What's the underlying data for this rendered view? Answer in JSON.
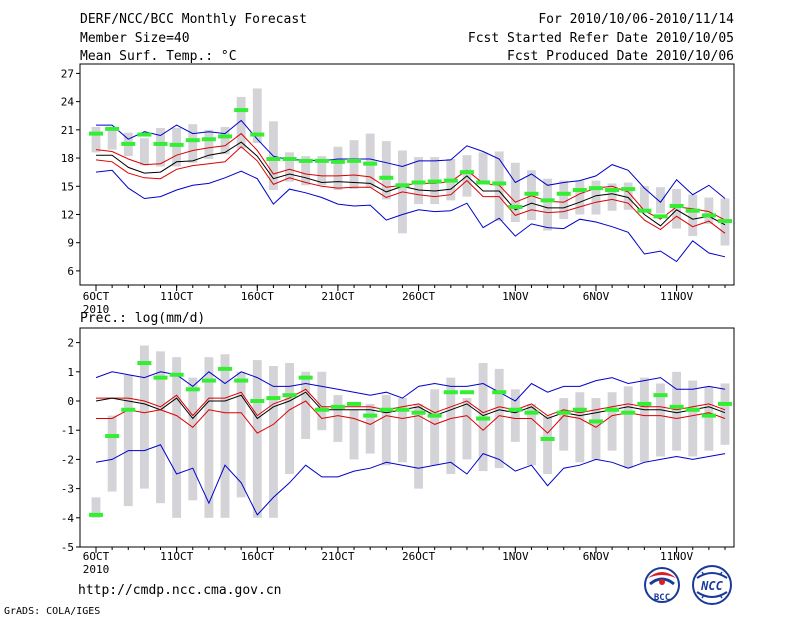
{
  "header": {
    "title": "DERF/NCC/BCC Monthly Forecast",
    "member_size": "Member Size=40",
    "variable": "Mean Surf. Temp.: °C",
    "period": "For 2010/10/06-2010/11/14",
    "fcst_started": "Fcst Started Refer Date 2010/10/05",
    "fcst_produced": "Fcst Produced Date 2010/10/06"
  },
  "footer": {
    "url": "http://cmdp.ncc.cma.gov.cn",
    "credit": "GrADS: COLA/IGES",
    "logo_left_text": "BCC",
    "logo_right_text": "NCC"
  },
  "colors": {
    "box": "#d3d3d8",
    "observed": "#33ee33",
    "mean": "#000000",
    "inner": "#dd0000",
    "outer": "#0000cc",
    "frame": "#000000"
  },
  "chart_data": [
    {
      "type": "line",
      "title": "Mean Surf. Temp.: °C",
      "xlabel": "",
      "ylabel": "",
      "ylim": [
        4.5,
        28
      ],
      "yticks": [
        6,
        9,
        12,
        15,
        18,
        21,
        24,
        27
      ],
      "xtick_labels": [
        "6OCT",
        "11OCT",
        "16OCT",
        "21OCT",
        "26OCT",
        "1NOV",
        "6NOV",
        "11NOV"
      ],
      "xtick_days": [
        1,
        6,
        11,
        16,
        21,
        27,
        32,
        37
      ],
      "year_label": "2010",
      "days": [
        1,
        2,
        3,
        4,
        5,
        6,
        7,
        8,
        9,
        10,
        11,
        12,
        13,
        14,
        15,
        16,
        17,
        18,
        19,
        20,
        21,
        22,
        23,
        24,
        25,
        26,
        27,
        28,
        29,
        30,
        31,
        32,
        33,
        34,
        35,
        36,
        37,
        38,
        39,
        40
      ],
      "box_low": [
        18.6,
        18.9,
        18.2,
        17.2,
        17.1,
        17.1,
        17.5,
        17.9,
        18.4,
        19.0,
        19.6,
        14.6,
        15.5,
        15.1,
        15.1,
        14.6,
        14.7,
        14.8,
        13.6,
        10.0,
        13.1,
        13.1,
        13.5,
        13.9,
        15.2,
        11.3,
        11.2,
        11.4,
        10.3,
        11.5,
        12.0,
        12.0,
        12.4,
        12.5,
        12.5,
        12.1,
        10.5,
        9.7,
        11.0,
        8.7
      ],
      "box_high": [
        21.3,
        21.2,
        20.7,
        20.1,
        21.2,
        21.2,
        21.6,
        21.0,
        21.3,
        24.5,
        25.4,
        21.9,
        18.6,
        18.2,
        18.2,
        19.2,
        19.9,
        20.6,
        19.8,
        18.8,
        18.1,
        18.1,
        17.9,
        18.3,
        18.6,
        18.7,
        17.5,
        16.7,
        15.8,
        15.6,
        15.6,
        15.6,
        15.3,
        15.4,
        15.0,
        14.9,
        14.7,
        14.1,
        13.8,
        13.7
      ],
      "observed": [
        20.6,
        21.1,
        19.5,
        20.5,
        19.5,
        19.4,
        19.9,
        20.0,
        20.3,
        23.1,
        20.5,
        17.9,
        17.9,
        17.7,
        17.7,
        17.6,
        17.7,
        17.4,
        15.9,
        15.1,
        15.4,
        15.5,
        15.6,
        16.5,
        15.4,
        15.3,
        12.8,
        14.2,
        13.5,
        14.2,
        14.6,
        14.8,
        14.6,
        14.7,
        12.4,
        11.8,
        12.9,
        12.4,
        11.9,
        11.3
      ],
      "series": [
        {
          "name": "upper_outer",
          "values": [
            21.5,
            21.5,
            20.0,
            20.8,
            20.4,
            21.5,
            20.6,
            20.8,
            20.6,
            22.0,
            20.0,
            18.2,
            17.8,
            17.8,
            17.7,
            17.9,
            17.9,
            17.9,
            17.5,
            17.1,
            17.7,
            17.7,
            17.8,
            19.3,
            18.7,
            17.9,
            15.4,
            16.3,
            15.1,
            15.4,
            15.6,
            16.1,
            17.3,
            16.7,
            14.8,
            13.3,
            15.7,
            14.1,
            15.1,
            13.7
          ]
        },
        {
          "name": "upper_inner",
          "values": [
            18.9,
            18.7,
            17.9,
            17.3,
            17.4,
            18.3,
            18.8,
            19.1,
            19.3,
            20.6,
            18.8,
            16.3,
            16.8,
            16.3,
            16.1,
            16.1,
            16.2,
            16.0,
            14.9,
            15.1,
            15.3,
            15.3,
            15.5,
            16.7,
            15.3,
            15.1,
            13.3,
            14.0,
            13.4,
            13.3,
            14.2,
            14.8,
            15.0,
            14.4,
            12.4,
            11.5,
            12.8,
            12.6,
            12.3,
            11.4
          ]
        },
        {
          "name": "mean",
          "values": [
            18.3,
            18.3,
            17.0,
            16.4,
            16.5,
            17.6,
            17.7,
            18.3,
            18.6,
            19.7,
            18.2,
            15.8,
            16.3,
            15.9,
            15.4,
            15.5,
            15.4,
            15.3,
            14.4,
            15.0,
            14.6,
            14.5,
            14.7,
            16.1,
            14.5,
            14.5,
            12.5,
            13.2,
            12.7,
            12.7,
            13.3,
            14.0,
            14.2,
            13.8,
            12.0,
            10.8,
            12.5,
            11.5,
            11.8,
            10.9
          ]
        },
        {
          "name": "lower_inner",
          "values": [
            17.8,
            17.6,
            16.4,
            15.9,
            15.8,
            16.8,
            17.2,
            17.4,
            17.6,
            19.2,
            17.7,
            15.2,
            15.9,
            15.4,
            15.0,
            14.8,
            14.9,
            14.9,
            13.8,
            14.4,
            14.1,
            13.9,
            14.1,
            15.6,
            13.9,
            13.9,
            11.9,
            12.5,
            12.2,
            12.3,
            12.8,
            13.3,
            13.6,
            13.2,
            11.4,
            10.4,
            11.8,
            10.7,
            11.3,
            10.0
          ]
        },
        {
          "name": "lower_outer",
          "values": [
            16.5,
            16.7,
            14.8,
            13.7,
            13.9,
            14.6,
            15.1,
            15.3,
            15.9,
            16.6,
            15.8,
            13.1,
            14.7,
            14.3,
            13.8,
            13.1,
            12.9,
            13.0,
            11.4,
            12.0,
            12.5,
            12.3,
            12.4,
            13.2,
            10.6,
            11.6,
            9.7,
            11.0,
            10.6,
            10.5,
            11.5,
            11.2,
            10.7,
            10.1,
            7.8,
            8.1,
            7.0,
            9.2,
            7.9,
            7.5
          ]
        }
      ]
    },
    {
      "type": "line",
      "title": "Prec.: log(mm/d)",
      "xlabel": "",
      "ylabel": "",
      "ylim": [
        -5,
        2.5
      ],
      "yticks": [
        -5,
        -4,
        -3,
        -2,
        -1,
        0,
        1,
        2
      ],
      "xtick_labels": [
        "6OCT",
        "11OCT",
        "16OCT",
        "21OCT",
        "26OCT",
        "1NOV",
        "6NOV",
        "11NOV"
      ],
      "xtick_days": [
        1,
        6,
        11,
        16,
        21,
        27,
        32,
        37
      ],
      "year_label": "2010",
      "days": [
        1,
        2,
        3,
        4,
        5,
        6,
        7,
        8,
        9,
        10,
        11,
        12,
        13,
        14,
        15,
        16,
        17,
        18,
        19,
        20,
        21,
        22,
        23,
        24,
        25,
        26,
        27,
        28,
        29,
        30,
        31,
        32,
        33,
        34,
        35,
        36,
        37,
        38,
        39,
        40
      ],
      "box_low": [
        -4.0,
        -3.1,
        -3.6,
        -3.0,
        -3.5,
        -4.0,
        -3.4,
        -4.0,
        -4.0,
        -3.3,
        -4.0,
        -4.0,
        -2.5,
        -1.3,
        -1.0,
        -1.4,
        -2.0,
        -1.8,
        -2.2,
        -2.1,
        -3.0,
        -2.2,
        -2.5,
        -2.0,
        -2.4,
        -2.3,
        -1.4,
        -2.2,
        -2.5,
        -1.7,
        -2.1,
        -2.0,
        -1.7,
        -2.3,
        -2.1,
        -1.9,
        -1.7,
        -1.9,
        -1.7,
        -1.5
      ],
      "box_high": [
        -3.3,
        -0.5,
        0.9,
        1.9,
        1.7,
        1.5,
        0.8,
        1.5,
        1.6,
        1.0,
        1.4,
        1.2,
        1.3,
        1.0,
        1.0,
        0.2,
        -0.3,
        -0.1,
        0.2,
        0.1,
        -0.1,
        0.4,
        0.8,
        0.1,
        1.3,
        1.1,
        0.4,
        -0.1,
        -0.5,
        0.1,
        0.3,
        0.1,
        0.3,
        0.5,
        0.8,
        0.6,
        1.0,
        0.7,
        0.5,
        0.6
      ],
      "observed": [
        -3.9,
        -1.2,
        -0.3,
        1.3,
        0.8,
        0.9,
        0.4,
        0.7,
        1.1,
        0.7,
        0.0,
        0.1,
        0.2,
        0.8,
        -0.3,
        -0.2,
        -0.1,
        -0.5,
        -0.3,
        -0.3,
        -0.4,
        -0.5,
        0.3,
        0.3,
        -0.6,
        0.3,
        -0.3,
        -0.4,
        -1.3,
        -0.4,
        -0.3,
        -0.7,
        -0.3,
        -0.4,
        -0.1,
        0.2,
        -0.2,
        -0.3,
        -0.5,
        -0.1
      ],
      "series": [
        {
          "name": "upper_outer",
          "values": [
            0.8,
            1.0,
            0.9,
            0.8,
            1.0,
            0.9,
            0.5,
            1.0,
            0.6,
            1.0,
            0.8,
            0.5,
            0.5,
            0.6,
            0.5,
            0.4,
            0.3,
            0.2,
            0.3,
            0.1,
            0.5,
            0.6,
            0.5,
            0.5,
            0.6,
            0.3,
            0.0,
            0.6,
            0.3,
            0.5,
            0.5,
            0.7,
            0.8,
            0.6,
            0.7,
            0.8,
            0.4,
            0.4,
            0.5,
            0.4
          ]
        },
        {
          "name": "upper_inner",
          "values": [
            0.1,
            0.1,
            0.1,
            0.0,
            -0.2,
            0.2,
            -0.5,
            0.1,
            0.1,
            0.3,
            -0.5,
            -0.1,
            0.1,
            0.4,
            -0.2,
            -0.2,
            -0.2,
            -0.2,
            -0.3,
            -0.2,
            -0.1,
            -0.4,
            -0.2,
            0.0,
            -0.4,
            -0.2,
            -0.3,
            -0.1,
            -0.5,
            -0.3,
            -0.4,
            -0.3,
            -0.2,
            -0.1,
            -0.2,
            -0.2,
            -0.3,
            -0.2,
            -0.1,
            -0.3
          ]
        },
        {
          "name": "mean",
          "values": [
            0.0,
            0.1,
            0.0,
            -0.1,
            -0.3,
            0.1,
            -0.6,
            0.0,
            0.0,
            0.2,
            -0.6,
            -0.2,
            0.0,
            0.3,
            -0.3,
            -0.3,
            -0.3,
            -0.3,
            -0.4,
            -0.3,
            -0.2,
            -0.5,
            -0.3,
            -0.1,
            -0.5,
            -0.3,
            -0.4,
            -0.2,
            -0.6,
            -0.4,
            -0.5,
            -0.4,
            -0.3,
            -0.2,
            -0.3,
            -0.3,
            -0.4,
            -0.3,
            -0.2,
            -0.4
          ]
        },
        {
          "name": "lower_inner",
          "values": [
            -0.6,
            -0.6,
            -0.3,
            -0.4,
            -0.3,
            -0.5,
            -0.9,
            -0.3,
            -0.4,
            -0.4,
            -1.1,
            -0.8,
            -0.3,
            0.0,
            -0.6,
            -0.5,
            -0.6,
            -0.8,
            -0.5,
            -0.6,
            -0.5,
            -0.8,
            -0.6,
            -0.5,
            -1.0,
            -0.5,
            -0.6,
            -0.6,
            -1.1,
            -0.5,
            -0.6,
            -0.9,
            -0.5,
            -0.4,
            -0.5,
            -0.5,
            -0.6,
            -0.5,
            -0.4,
            -0.6
          ]
        },
        {
          "name": "lower_outer",
          "values": [
            -2.1,
            -2.0,
            -1.7,
            -1.7,
            -1.5,
            -2.5,
            -2.3,
            -3.5,
            -2.2,
            -2.8,
            -3.9,
            -3.3,
            -2.8,
            -2.2,
            -2.6,
            -2.6,
            -2.4,
            -2.3,
            -2.1,
            -2.2,
            -2.3,
            -2.2,
            -2.1,
            -2.5,
            -1.8,
            -2.0,
            -2.4,
            -2.2,
            -2.9,
            -2.3,
            -2.2,
            -2.0,
            -2.1,
            -2.3,
            -2.1,
            -2.0,
            -1.9,
            -2.0,
            -1.9,
            -1.8
          ]
        }
      ]
    }
  ]
}
